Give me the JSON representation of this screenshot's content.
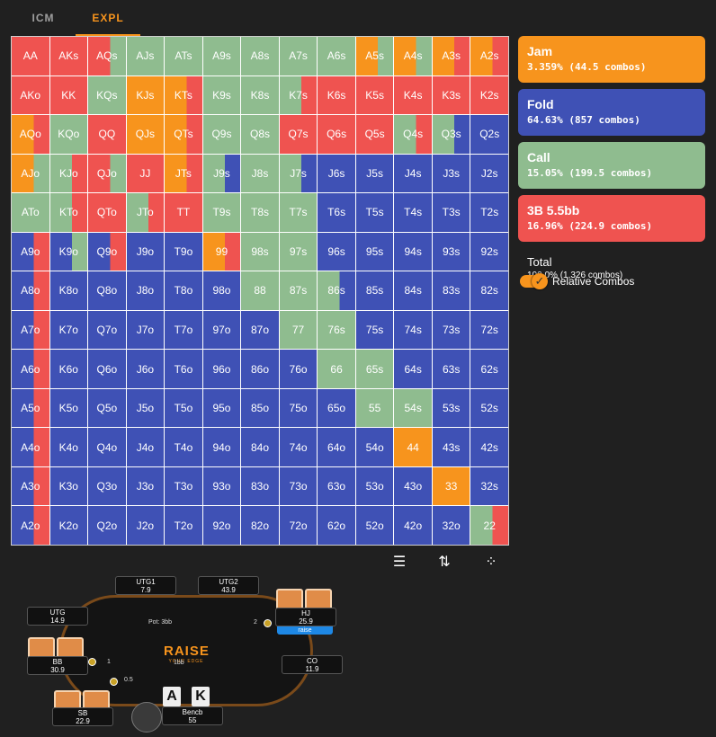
{
  "tabs": [
    {
      "label": "ICM"
    },
    {
      "label": "EXPL"
    }
  ],
  "colors": {
    "jam": "#f7941d",
    "fold": "#3f51b5",
    "call": "#8fbc8f",
    "raise": "#ef5350"
  },
  "grid": {
    "ranks": [
      "A",
      "K",
      "Q",
      "J",
      "T",
      "9",
      "8",
      "7",
      "6",
      "5",
      "4",
      "3",
      "2"
    ],
    "rows": [
      [
        "AA",
        "AKs",
        "AQs",
        "AJs",
        "ATs",
        "A9s",
        "A8s",
        "A7s",
        "A6s",
        "A5s",
        "A4s",
        "A3s",
        "A2s"
      ],
      [
        "AKo",
        "KK",
        "KQs",
        "KJs",
        "KTs",
        "K9s",
        "K8s",
        "K7s",
        "K6s",
        "K5s",
        "K4s",
        "K3s",
        "K2s"
      ],
      [
        "AQo",
        "KQo",
        "QQ",
        "QJs",
        "QTs",
        "Q9s",
        "Q8s",
        "Q7s",
        "Q6s",
        "Q5s",
        "Q4s",
        "Q3s",
        "Q2s"
      ],
      [
        "AJo",
        "KJo",
        "QJo",
        "JJ",
        "JTs",
        "J9s",
        "J8s",
        "J7s",
        "J6s",
        "J5s",
        "J4s",
        "J3s",
        "J2s"
      ],
      [
        "ATo",
        "KTo",
        "QTo",
        "JTo",
        "TT",
        "T9s",
        "T8s",
        "T7s",
        "T6s",
        "T5s",
        "T4s",
        "T3s",
        "T2s"
      ],
      [
        "A9o",
        "K9o",
        "Q9o",
        "J9o",
        "T9o",
        "99",
        "98s",
        "97s",
        "96s",
        "95s",
        "94s",
        "93s",
        "92s"
      ],
      [
        "A8o",
        "K8o",
        "Q8o",
        "J8o",
        "T8o",
        "98o",
        "88",
        "87s",
        "86s",
        "85s",
        "84s",
        "83s",
        "82s"
      ],
      [
        "A7o",
        "K7o",
        "Q7o",
        "J7o",
        "T7o",
        "97o",
        "87o",
        "77",
        "76s",
        "75s",
        "74s",
        "73s",
        "72s"
      ],
      [
        "A6o",
        "K6o",
        "Q6o",
        "J6o",
        "T6o",
        "96o",
        "86o",
        "76o",
        "66",
        "65s",
        "64s",
        "63s",
        "62s"
      ],
      [
        "A5o",
        "K5o",
        "Q5o",
        "J5o",
        "T5o",
        "95o",
        "85o",
        "75o",
        "65o",
        "55",
        "54s",
        "53s",
        "52s"
      ],
      [
        "A4o",
        "K4o",
        "Q4o",
        "J4o",
        "T4o",
        "94o",
        "84o",
        "74o",
        "64o",
        "54o",
        "44",
        "43s",
        "42s"
      ],
      [
        "A3o",
        "K3o",
        "Q3o",
        "J3o",
        "T3o",
        "93o",
        "83o",
        "73o",
        "63o",
        "53o",
        "43o",
        "33",
        "32s"
      ],
      [
        "A2o",
        "K2o",
        "Q2o",
        "J2o",
        "T2o",
        "92o",
        "82o",
        "72o",
        "62o",
        "52o",
        "42o",
        "32o",
        "22"
      ]
    ],
    "actions": [
      [
        "R",
        "R",
        "RC",
        "C",
        "C",
        "C",
        "C",
        "C",
        "C",
        "JC",
        "JC",
        "JR",
        "JR"
      ],
      [
        "R",
        "R",
        "C",
        "J",
        "JR",
        "C",
        "C",
        "CR",
        "R",
        "R",
        "R",
        "R",
        "R"
      ],
      [
        "JR",
        "C",
        "R",
        "J",
        "JR",
        "C",
        "C",
        "R",
        "R",
        "R",
        "CR",
        "CF",
        "F"
      ],
      [
        "JC",
        "CR",
        "RC",
        "R",
        "JR",
        "CF",
        "C",
        "CF",
        "F",
        "F",
        "F",
        "F",
        "F"
      ],
      [
        "C",
        "CR",
        "R",
        "CR",
        "R",
        "C",
        "C",
        "C",
        "F",
        "F",
        "F",
        "F",
        "F"
      ],
      [
        "FR",
        "FC",
        "FR",
        "F",
        "F",
        "JR",
        "C",
        "C",
        "F",
        "F",
        "F",
        "F",
        "F"
      ],
      [
        "FR",
        "F",
        "F",
        "F",
        "F",
        "F",
        "C",
        "C",
        "CF",
        "F",
        "F",
        "F",
        "F"
      ],
      [
        "FR",
        "F",
        "F",
        "F",
        "F",
        "F",
        "F",
        "C",
        "C",
        "F",
        "F",
        "F",
        "F"
      ],
      [
        "FR",
        "F",
        "F",
        "F",
        "F",
        "F",
        "F",
        "F",
        "C",
        "C",
        "F",
        "F",
        "F"
      ],
      [
        "FR",
        "F",
        "F",
        "F",
        "F",
        "F",
        "F",
        "F",
        "F",
        "C",
        "C",
        "F",
        "F"
      ],
      [
        "FR",
        "F",
        "F",
        "F",
        "F",
        "F",
        "F",
        "F",
        "F",
        "F",
        "J",
        "F",
        "F"
      ],
      [
        "FR",
        "F",
        "F",
        "F",
        "F",
        "F",
        "F",
        "F",
        "F",
        "F",
        "F",
        "J",
        "F"
      ],
      [
        "FR",
        "F",
        "F",
        "F",
        "F",
        "F",
        "F",
        "F",
        "F",
        "F",
        "F",
        "F",
        "CR"
      ]
    ]
  },
  "legend": [
    {
      "key": "jam",
      "title": "Jam",
      "stats": "3.359% (44.5 combos)"
    },
    {
      "key": "fold",
      "title": "Fold",
      "stats": "64.63% (857 combos)"
    },
    {
      "key": "call",
      "title": "Call",
      "stats": "15.05% (199.5 combos)"
    },
    {
      "key": "raise",
      "title": "3B 5.5bb",
      "stats": "16.96% (224.9 combos)"
    }
  ],
  "total": {
    "title": "Total",
    "stats": "100.0% (1,326 combos)"
  },
  "toggle": {
    "label": "Relative Combos",
    "checked": true
  },
  "table": {
    "pot": "Pot: 3bb",
    "logo_main": "RAISE",
    "logo_sub": "YOUR EDGE",
    "hj_bet": "2",
    "bb_bet": "1",
    "sb_bet": "0.5",
    "center_bet": "1bb",
    "raise_label": "raise",
    "hero_cards": [
      "A",
      "K"
    ],
    "seats": [
      {
        "id": "utg1",
        "name": "UTG1",
        "stack": "7.9"
      },
      {
        "id": "utg2",
        "name": "UTG2",
        "stack": "43.9"
      },
      {
        "id": "utg",
        "name": "UTG",
        "stack": "14.9"
      },
      {
        "id": "hj",
        "name": "HJ",
        "stack": "25.9"
      },
      {
        "id": "bb",
        "name": "BB",
        "stack": "30.9"
      },
      {
        "id": "co",
        "name": "CO",
        "stack": "11.9"
      },
      {
        "id": "sb",
        "name": "SB",
        "stack": "22.9"
      },
      {
        "id": "hero",
        "name": "Bencb",
        "stack": "55"
      }
    ]
  }
}
